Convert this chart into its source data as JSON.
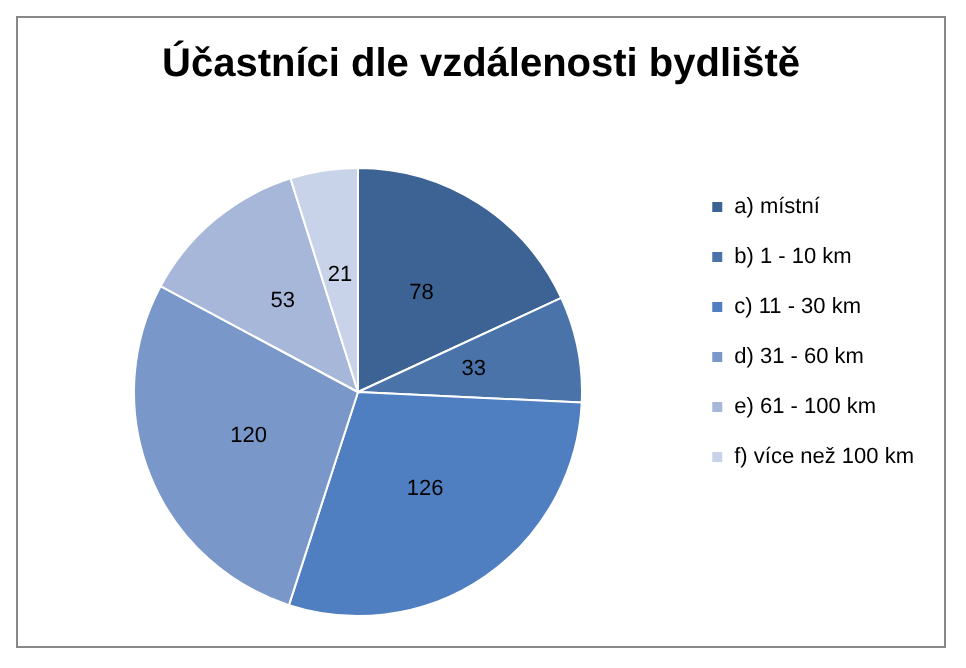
{
  "chart_data": {
    "type": "pie",
    "title": "Účastníci dle vzdálenosti bydliště",
    "categories": [
      "a) místní",
      "b) 1 - 10 km",
      "c) 11 - 30 km",
      "d) 31 - 60 km",
      "e) 61 - 100 km",
      "f) více než 100 km"
    ],
    "values": [
      78,
      33,
      126,
      120,
      53,
      21
    ],
    "colors": [
      "#3d6294",
      "#4a73aa",
      "#4f7fc0",
      "#7a97c9",
      "#a6b7d9",
      "#c8d3e9"
    ],
    "data_labels": true,
    "legend": "right"
  }
}
